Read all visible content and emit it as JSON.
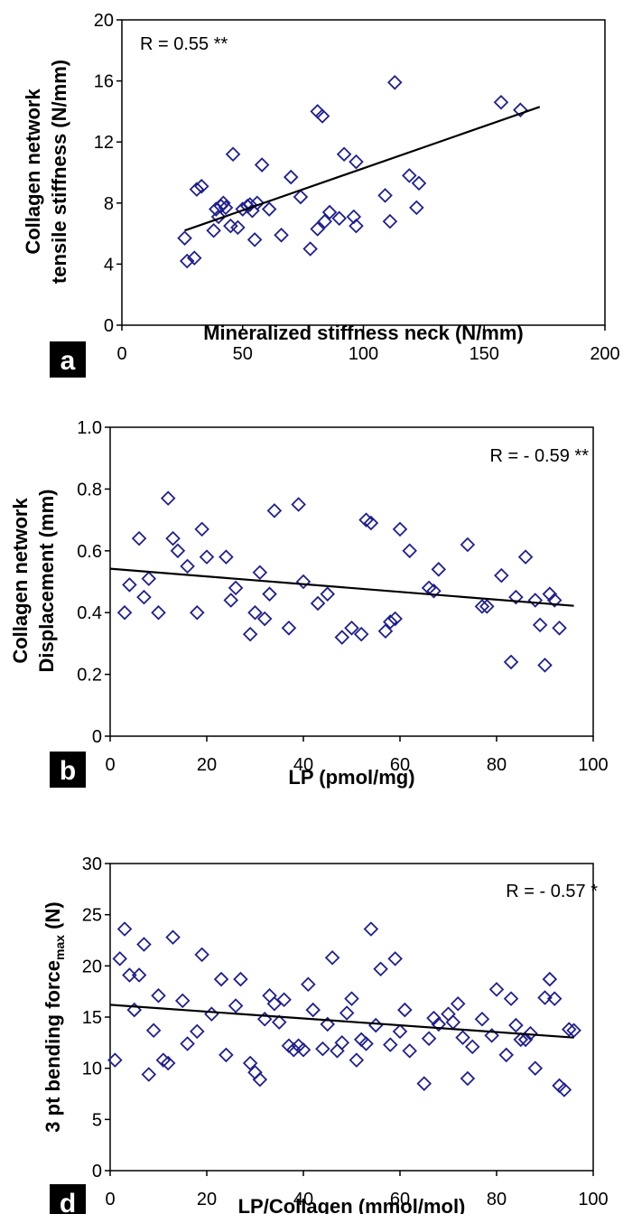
{
  "chart_data": [
    {
      "panel": "a",
      "type": "scatter",
      "xlabel": "Mineralized stiffness neck (N/mm)",
      "ylabel_lines": [
        "Collagen network",
        "tensile stiffness (N/mm)"
      ],
      "annotation": "R = 0.55 **",
      "xlim": [
        0,
        200
      ],
      "ylim": [
        0,
        20
      ],
      "xticks": [
        0,
        50,
        100,
        150,
        200
      ],
      "yticks": [
        0,
        4,
        8,
        12,
        16,
        20
      ],
      "fit": [
        [
          26,
          6.2
        ],
        [
          173,
          14.3
        ]
      ],
      "points": [
        [
          26,
          5.7
        ],
        [
          27,
          4.2
        ],
        [
          30,
          4.4
        ],
        [
          31,
          8.9
        ],
        [
          33,
          9.1
        ],
        [
          38,
          6.2
        ],
        [
          39,
          7.6
        ],
        [
          40,
          7.1
        ],
        [
          41,
          7.8
        ],
        [
          42,
          8.0
        ],
        [
          43,
          7.7
        ],
        [
          45,
          6.5
        ],
        [
          46,
          11.2
        ],
        [
          48,
          6.4
        ],
        [
          50,
          7.6
        ],
        [
          52,
          7.8
        ],
        [
          53,
          7.9
        ],
        [
          54,
          7.5
        ],
        [
          55,
          5.6
        ],
        [
          56,
          8.0
        ],
        [
          58,
          10.5
        ],
        [
          61,
          7.6
        ],
        [
          66,
          5.9
        ],
        [
          70,
          9.7
        ],
        [
          74,
          8.4
        ],
        [
          78,
          5.0
        ],
        [
          81,
          6.3
        ],
        [
          81,
          14.0
        ],
        [
          83,
          13.7
        ],
        [
          84,
          6.8
        ],
        [
          86,
          7.4
        ],
        [
          90,
          7.0
        ],
        [
          92,
          11.2
        ],
        [
          96,
          7.1
        ],
        [
          97,
          6.5
        ],
        [
          97,
          10.7
        ],
        [
          109,
          8.5
        ],
        [
          111,
          6.8
        ],
        [
          113,
          15.9
        ],
        [
          119,
          9.8
        ],
        [
          122,
          7.7
        ],
        [
          123,
          9.3
        ],
        [
          157,
          14.6
        ],
        [
          165,
          14.1
        ]
      ]
    },
    {
      "panel": "b",
      "type": "scatter",
      "xlabel": "LP (pmol/mg)",
      "ylabel_lines": [
        "Collagen network",
        "Displacement (mm)"
      ],
      "annotation": "R = - 0.59 **",
      "xlim": [
        0,
        100
      ],
      "ylim": [
        0,
        1.0
      ],
      "xticks": [
        0,
        20,
        40,
        60,
        80,
        100
      ],
      "yticks": [
        "0",
        "0.2",
        "0.4",
        "0.6",
        "0.8",
        "1.0"
      ],
      "ytick_values": [
        0,
        0.2,
        0.4,
        0.6,
        0.8,
        1.0
      ],
      "fit": [
        [
          0,
          0.542
        ],
        [
          96,
          0.422
        ]
      ],
      "points": [
        [
          3,
          0.4
        ],
        [
          4,
          0.49
        ],
        [
          6,
          0.64
        ],
        [
          7,
          0.45
        ],
        [
          8,
          0.51
        ],
        [
          10,
          0.4
        ],
        [
          12,
          0.77
        ],
        [
          13,
          0.64
        ],
        [
          14,
          0.6
        ],
        [
          16,
          0.55
        ],
        [
          18,
          0.4
        ],
        [
          19,
          0.67
        ],
        [
          20,
          0.58
        ],
        [
          24,
          0.58
        ],
        [
          25,
          0.44
        ],
        [
          26,
          0.48
        ],
        [
          29,
          0.33
        ],
        [
          30,
          0.4
        ],
        [
          31,
          0.53
        ],
        [
          32,
          0.38
        ],
        [
          33,
          0.46
        ],
        [
          34,
          0.73
        ],
        [
          37,
          0.35
        ],
        [
          39,
          0.75
        ],
        [
          40,
          0.5
        ],
        [
          43,
          0.43
        ],
        [
          45,
          0.46
        ],
        [
          48,
          0.32
        ],
        [
          50,
          0.35
        ],
        [
          52,
          0.33
        ],
        [
          53,
          0.7
        ],
        [
          54,
          0.69
        ],
        [
          57,
          0.34
        ],
        [
          58,
          0.37
        ],
        [
          59,
          0.38
        ],
        [
          60,
          0.67
        ],
        [
          62,
          0.6
        ],
        [
          66,
          0.48
        ],
        [
          67,
          0.47
        ],
        [
          68,
          0.54
        ],
        [
          74,
          0.62
        ],
        [
          77,
          0.42
        ],
        [
          78,
          0.42
        ],
        [
          81,
          0.52
        ],
        [
          83,
          0.24
        ],
        [
          84,
          0.45
        ],
        [
          86,
          0.58
        ],
        [
          88,
          0.44
        ],
        [
          89,
          0.36
        ],
        [
          90,
          0.23
        ],
        [
          91,
          0.46
        ],
        [
          92,
          0.44
        ],
        [
          93,
          0.35
        ]
      ]
    },
    {
      "panel": "d",
      "type": "scatter",
      "xlabel": "LP/Collagen (mmol/mol)",
      "ylabel_main": "3 pt bending force",
      "ylabel_sub": "max",
      "ylabel_unit": " (N)",
      "annotation": "R = - 0.57 *",
      "xlim": [
        0,
        100
      ],
      "ylim": [
        0,
        30
      ],
      "xticks": [
        0,
        20,
        40,
        60,
        80,
        100
      ],
      "yticks": [
        0,
        5,
        10,
        15,
        20,
        25,
        30
      ],
      "fit": [
        [
          0,
          16.2
        ],
        [
          96,
          13.0
        ]
      ],
      "points": [
        [
          1,
          10.8
        ],
        [
          2,
          20.7
        ],
        [
          3,
          23.6
        ],
        [
          4,
          19.1
        ],
        [
          5,
          15.7
        ],
        [
          6,
          19.1
        ],
        [
          7,
          22.1
        ],
        [
          8,
          9.4
        ],
        [
          9,
          13.7
        ],
        [
          10,
          17.1
        ],
        [
          11,
          10.8
        ],
        [
          12,
          10.5
        ],
        [
          13,
          22.8
        ],
        [
          15,
          16.6
        ],
        [
          16,
          12.4
        ],
        [
          18,
          13.6
        ],
        [
          19,
          21.1
        ],
        [
          21,
          15.3
        ],
        [
          23,
          18.7
        ],
        [
          24,
          11.3
        ],
        [
          26,
          16.1
        ],
        [
          27,
          18.7
        ],
        [
          29,
          10.5
        ],
        [
          30,
          9.6
        ],
        [
          31,
          8.9
        ],
        [
          32,
          14.8
        ],
        [
          33,
          17.1
        ],
        [
          34,
          16.3
        ],
        [
          35,
          14.5
        ],
        [
          36,
          16.7
        ],
        [
          37,
          12.2
        ],
        [
          38,
          11.8
        ],
        [
          39,
          12.2
        ],
        [
          40,
          11.8
        ],
        [
          41,
          18.2
        ],
        [
          42,
          15.7
        ],
        [
          44,
          11.9
        ],
        [
          45,
          14.3
        ],
        [
          46,
          20.8
        ],
        [
          47,
          11.7
        ],
        [
          48,
          12.5
        ],
        [
          49,
          15.4
        ],
        [
          50,
          16.8
        ],
        [
          51,
          10.8
        ],
        [
          52,
          12.8
        ],
        [
          53,
          12.4
        ],
        [
          54,
          23.6
        ],
        [
          55,
          14.2
        ],
        [
          56,
          19.7
        ],
        [
          58,
          12.3
        ],
        [
          59,
          20.7
        ],
        [
          60,
          13.6
        ],
        [
          61,
          15.7
        ],
        [
          62,
          11.7
        ],
        [
          65,
          8.5
        ],
        [
          66,
          12.9
        ],
        [
          67,
          14.9
        ],
        [
          68,
          14.3
        ],
        [
          70,
          15.3
        ],
        [
          71,
          14.5
        ],
        [
          72,
          16.3
        ],
        [
          73,
          13.0
        ],
        [
          74,
          9.0
        ],
        [
          75,
          12.1
        ],
        [
          77,
          14.8
        ],
        [
          79,
          13.2
        ],
        [
          80,
          17.7
        ],
        [
          82,
          11.3
        ],
        [
          83,
          16.8
        ],
        [
          84,
          14.2
        ],
        [
          85,
          12.8
        ],
        [
          86,
          12.8
        ],
        [
          87,
          13.4
        ],
        [
          88,
          10.0
        ],
        [
          90,
          16.9
        ],
        [
          91,
          18.7
        ],
        [
          92,
          16.8
        ],
        [
          93,
          8.3
        ],
        [
          94,
          7.9
        ],
        [
          95,
          13.8
        ],
        [
          96,
          13.7
        ]
      ]
    }
  ]
}
